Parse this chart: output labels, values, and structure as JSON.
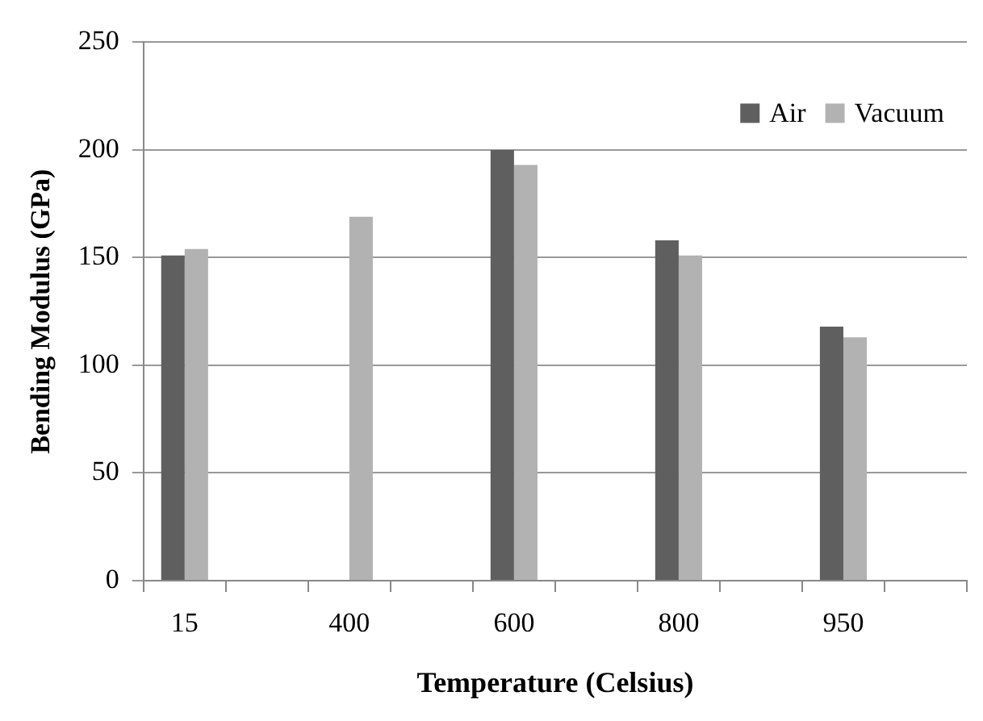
{
  "chart_data": {
    "type": "bar",
    "xlabel": "Temperature (Celsius)",
    "ylabel": "Bending Modulus (GPa)",
    "categories": [
      "15",
      null,
      "400",
      null,
      "600",
      null,
      "800",
      null,
      "950",
      null
    ],
    "series": [
      {
        "name": "Air",
        "color": "#5f5f5f",
        "values": [
          151,
          null,
          null,
          null,
          200,
          null,
          158,
          null,
          118,
          null
        ]
      },
      {
        "name": "Vacuum",
        "color": "#b2b2b2",
        "values": [
          154,
          null,
          169,
          null,
          193,
          null,
          151,
          null,
          113,
          null
        ]
      }
    ],
    "ylim": [
      0,
      250
    ],
    "yticks": [
      0,
      50,
      100,
      150,
      200,
      250
    ],
    "grid": "y",
    "legend": "top right"
  }
}
